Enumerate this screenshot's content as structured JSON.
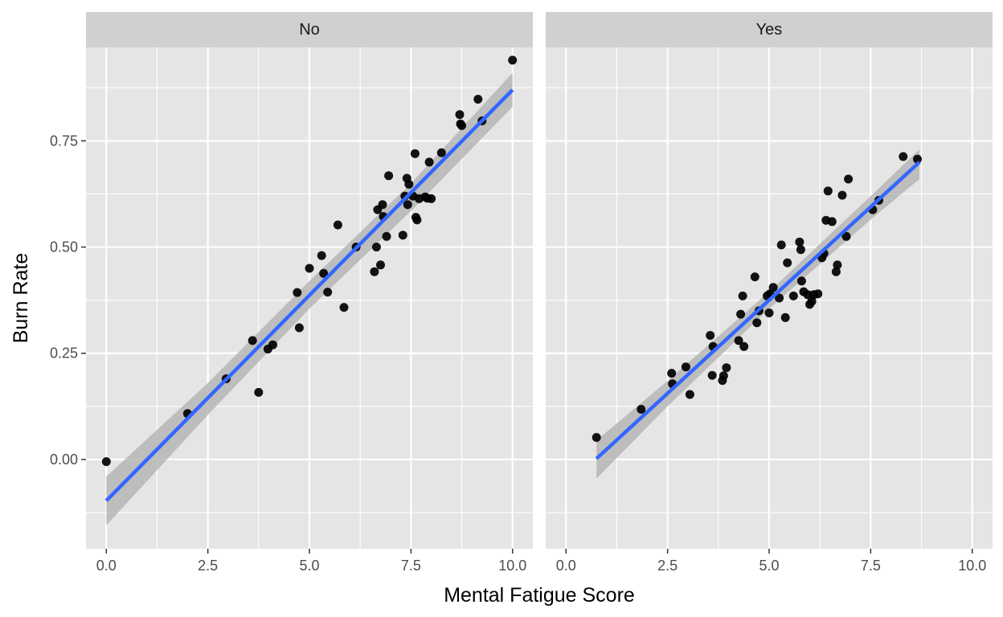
{
  "chart_data": {
    "type": "scatter",
    "xlabel": "Mental Fatigue Score",
    "ylabel": "Burn Rate",
    "xlim": [
      -0.5,
      10.5
    ],
    "ylim": [
      -0.21,
      0.97
    ],
    "x_ticks": [
      0.0,
      2.5,
      5.0,
      7.5,
      10.0
    ],
    "x_tick_labels": [
      "0.0",
      "2.5",
      "5.0",
      "7.5",
      "10.0"
    ],
    "y_ticks": [
      0.0,
      0.25,
      0.5,
      0.75
    ],
    "y_tick_labels": [
      "0.00",
      "0.25",
      "0.50",
      "0.75"
    ],
    "grid": true,
    "smooth_method": "linear fit with confidence band",
    "colors": {
      "panel_background": "#e5e5e5",
      "strip_background": "#d0d0d0",
      "grid": "#ffffff",
      "point": "#000000",
      "line": "#3366ff",
      "band": "#b3b3b3"
    },
    "facets": [
      {
        "label": "No",
        "fit": {
          "x_start": 0.0,
          "y_start": -0.097,
          "x_end": 10.0,
          "y_end": 0.87
        },
        "band": {
          "x": [
            0.0,
            2.5,
            5.0,
            7.5,
            10.0
          ],
          "upper": [
            -0.04,
            0.18,
            0.42,
            0.65,
            0.91
          ],
          "lower": [
            -0.155,
            0.105,
            0.355,
            0.585,
            0.83
          ]
        },
        "points": [
          [
            0.0,
            -0.005
          ],
          [
            2.0,
            0.108
          ],
          [
            2.95,
            0.19
          ],
          [
            3.6,
            0.28
          ],
          [
            3.75,
            0.158
          ],
          [
            3.98,
            0.26
          ],
          [
            4.1,
            0.27
          ],
          [
            4.7,
            0.393
          ],
          [
            4.75,
            0.31
          ],
          [
            5.0,
            0.45
          ],
          [
            5.3,
            0.48
          ],
          [
            5.35,
            0.438
          ],
          [
            5.45,
            0.394
          ],
          [
            5.7,
            0.552
          ],
          [
            5.85,
            0.358
          ],
          [
            6.15,
            0.5
          ],
          [
            6.6,
            0.442
          ],
          [
            6.65,
            0.5
          ],
          [
            6.68,
            0.588
          ],
          [
            6.75,
            0.458
          ],
          [
            6.8,
            0.6
          ],
          [
            6.82,
            0.572
          ],
          [
            6.9,
            0.525
          ],
          [
            6.95,
            0.668
          ],
          [
            7.3,
            0.528
          ],
          [
            7.35,
            0.62
          ],
          [
            7.4,
            0.662
          ],
          [
            7.42,
            0.6
          ],
          [
            7.45,
            0.648
          ],
          [
            7.55,
            0.62
          ],
          [
            7.6,
            0.72
          ],
          [
            7.62,
            0.57
          ],
          [
            7.65,
            0.564
          ],
          [
            7.7,
            0.614
          ],
          [
            7.85,
            0.618
          ],
          [
            7.9,
            0.615
          ],
          [
            7.95,
            0.7
          ],
          [
            8.0,
            0.614
          ],
          [
            8.25,
            0.722
          ],
          [
            8.7,
            0.812
          ],
          [
            8.72,
            0.79
          ],
          [
            8.75,
            0.786
          ],
          [
            9.15,
            0.848
          ],
          [
            9.25,
            0.797
          ],
          [
            10.0,
            0.94
          ]
        ]
      },
      {
        "label": "Yes",
        "fit": {
          "x_start": 0.75,
          "y_start": 0.002,
          "x_end": 8.7,
          "y_end": 0.7
        },
        "band": {
          "x": [
            0.75,
            2.5,
            5.0,
            7.5,
            8.7
          ],
          "upper": [
            0.045,
            0.185,
            0.395,
            0.62,
            0.73
          ],
          "lower": [
            -0.045,
            0.125,
            0.355,
            0.565,
            0.66
          ]
        },
        "points": [
          [
            0.75,
            0.052
          ],
          [
            1.85,
            0.118
          ],
          [
            2.6,
            0.203
          ],
          [
            2.62,
            0.178
          ],
          [
            2.95,
            0.218
          ],
          [
            3.05,
            0.153
          ],
          [
            3.55,
            0.292
          ],
          [
            3.6,
            0.198
          ],
          [
            3.62,
            0.266
          ],
          [
            3.85,
            0.186
          ],
          [
            3.88,
            0.197
          ],
          [
            3.95,
            0.216
          ],
          [
            4.25,
            0.28
          ],
          [
            4.3,
            0.342
          ],
          [
            4.35,
            0.385
          ],
          [
            4.38,
            0.266
          ],
          [
            4.65,
            0.43
          ],
          [
            4.7,
            0.322
          ],
          [
            4.75,
            0.35
          ],
          [
            4.95,
            0.385
          ],
          [
            5.0,
            0.345
          ],
          [
            5.02,
            0.39
          ],
          [
            5.1,
            0.405
          ],
          [
            5.25,
            0.38
          ],
          [
            5.3,
            0.505
          ],
          [
            5.4,
            0.334
          ],
          [
            5.45,
            0.463
          ],
          [
            5.6,
            0.385
          ],
          [
            5.75,
            0.512
          ],
          [
            5.78,
            0.494
          ],
          [
            5.8,
            0.42
          ],
          [
            5.85,
            0.395
          ],
          [
            5.95,
            0.388
          ],
          [
            6.0,
            0.365
          ],
          [
            6.05,
            0.372
          ],
          [
            6.1,
            0.388
          ],
          [
            6.2,
            0.39
          ],
          [
            6.3,
            0.475
          ],
          [
            6.35,
            0.485
          ],
          [
            6.4,
            0.563
          ],
          [
            6.45,
            0.632
          ],
          [
            6.55,
            0.56
          ],
          [
            6.65,
            0.442
          ],
          [
            6.68,
            0.458
          ],
          [
            6.8,
            0.622
          ],
          [
            6.9,
            0.525
          ],
          [
            6.95,
            0.66
          ],
          [
            7.55,
            0.588
          ],
          [
            7.7,
            0.61
          ],
          [
            8.3,
            0.713
          ],
          [
            8.65,
            0.707
          ]
        ]
      }
    ]
  }
}
